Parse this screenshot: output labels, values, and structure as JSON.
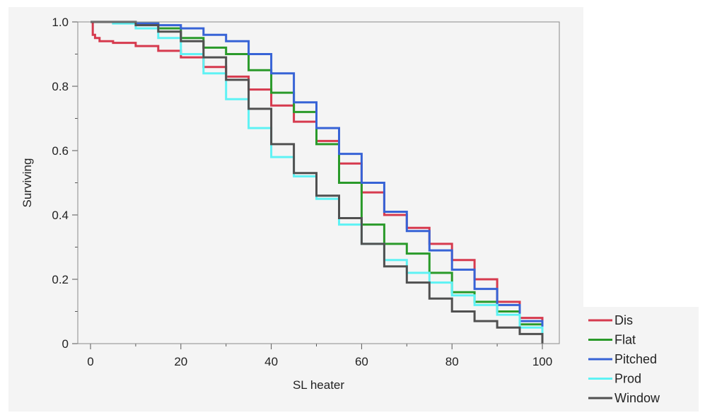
{
  "chart_data": {
    "type": "line",
    "step": true,
    "title": "",
    "xlabel": "SL heater",
    "ylabel": "Surviving",
    "xlim": [
      0,
      100
    ],
    "ylim": [
      0,
      1.0
    ],
    "x_ticks": [
      0,
      20,
      40,
      60,
      80,
      100
    ],
    "x_tick_labels": [
      "0",
      "20",
      "40",
      "60",
      "80",
      "100"
    ],
    "y_ticks": [
      0,
      0.2,
      0.4,
      0.6,
      0.8,
      1.0
    ],
    "y_tick_labels": [
      "0",
      "0.2",
      "0.4",
      "0.6",
      "0.8",
      "1.0"
    ],
    "legend_position": "bottom-right outside",
    "series": [
      {
        "name": "Dis",
        "color": "#d63a4e",
        "x": [
          0,
          0.5,
          1,
          2,
          5,
          10,
          15,
          20,
          25,
          30,
          35,
          40,
          45,
          50,
          55,
          60,
          65,
          70,
          75,
          80,
          85,
          90,
          95,
          100
        ],
        "y": [
          1.0,
          0.96,
          0.95,
          0.94,
          0.935,
          0.925,
          0.91,
          0.89,
          0.86,
          0.83,
          0.79,
          0.74,
          0.69,
          0.63,
          0.56,
          0.47,
          0.4,
          0.36,
          0.31,
          0.26,
          0.2,
          0.13,
          0.08,
          0.03
        ]
      },
      {
        "name": "Flat",
        "color": "#2a9a2a",
        "x": [
          0,
          5,
          10,
          15,
          20,
          25,
          30,
          35,
          40,
          45,
          50,
          55,
          60,
          65,
          70,
          75,
          80,
          85,
          90,
          95,
          100
        ],
        "y": [
          1.0,
          1.0,
          0.995,
          0.98,
          0.95,
          0.92,
          0.9,
          0.85,
          0.78,
          0.72,
          0.62,
          0.5,
          0.37,
          0.31,
          0.28,
          0.22,
          0.16,
          0.13,
          0.1,
          0.06,
          0.02
        ]
      },
      {
        "name": "Pitched",
        "color": "#3763d6",
        "x": [
          0,
          5,
          10,
          15,
          20,
          25,
          30,
          35,
          40,
          45,
          50,
          55,
          60,
          65,
          70,
          75,
          80,
          85,
          90,
          95,
          100
        ],
        "y": [
          1.0,
          1.0,
          0.995,
          0.99,
          0.98,
          0.96,
          0.94,
          0.9,
          0.84,
          0.75,
          0.67,
          0.59,
          0.5,
          0.41,
          0.35,
          0.29,
          0.23,
          0.17,
          0.12,
          0.07,
          0.02
        ]
      },
      {
        "name": "Prod",
        "color": "#5ef2f4",
        "x": [
          0,
          5,
          10,
          15,
          20,
          25,
          30,
          35,
          40,
          45,
          50,
          55,
          60,
          65,
          70,
          75,
          80,
          85,
          90,
          95,
          100
        ],
        "y": [
          1.0,
          0.995,
          0.98,
          0.95,
          0.9,
          0.84,
          0.76,
          0.67,
          0.58,
          0.52,
          0.45,
          0.37,
          0.31,
          0.26,
          0.22,
          0.19,
          0.15,
          0.12,
          0.09,
          0.05,
          0.02
        ]
      },
      {
        "name": "Window",
        "color": "#505050",
        "x": [
          0,
          5,
          10,
          15,
          20,
          25,
          30,
          35,
          40,
          45,
          50,
          55,
          60,
          65,
          70,
          75,
          80,
          85,
          90,
          95,
          100
        ],
        "y": [
          1.0,
          1.0,
          0.99,
          0.97,
          0.94,
          0.89,
          0.82,
          0.73,
          0.62,
          0.53,
          0.46,
          0.39,
          0.31,
          0.24,
          0.19,
          0.14,
          0.1,
          0.07,
          0.05,
          0.03,
          0.0
        ]
      }
    ]
  }
}
